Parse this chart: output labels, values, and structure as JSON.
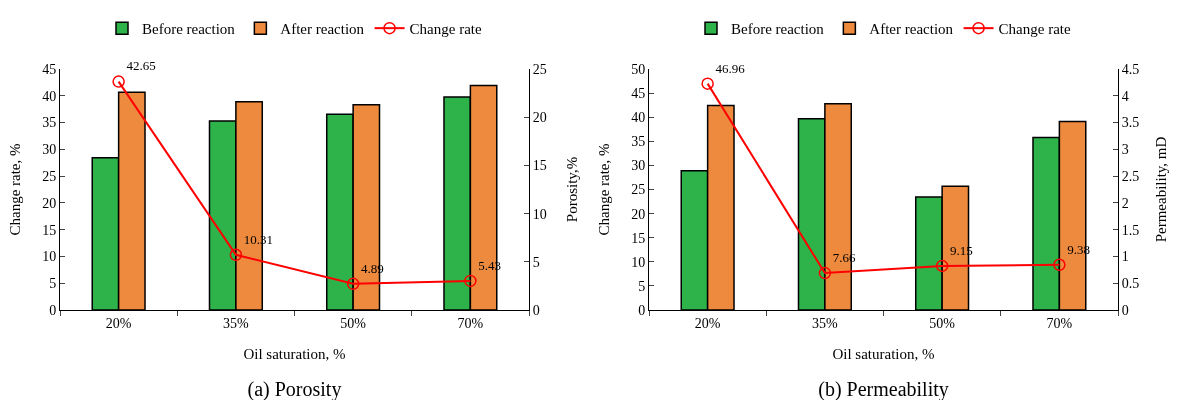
{
  "chart_data": [
    {
      "type": "bar",
      "title": "(a) Porosity",
      "xlabel": "Oil saturation, %",
      "ylabel": "Change rate, %",
      "y2label": "Porosity,%",
      "categories": [
        "20%",
        "35%",
        "50%",
        "70%"
      ],
      "series": [
        {
          "name": "Before reaction",
          "color": "#2db34a",
          "axis": "y2",
          "values": [
            15.8,
            19.6,
            20.3,
            22.1
          ]
        },
        {
          "name": "After reaction",
          "color": "#ed8a3e",
          "axis": "y2",
          "values": [
            22.6,
            21.6,
            21.3,
            23.3
          ]
        },
        {
          "name": "Change rate",
          "type": "line",
          "color": "#ff0000",
          "marker": "circle",
          "values": [
            42.65,
            10.31,
            4.89,
            5.43
          ],
          "value_labels": [
            "42.65",
            "10.31",
            "4.89",
            "5.43"
          ]
        }
      ],
      "ylim": [
        0,
        45
      ],
      "yticks": [
        0,
        5,
        10,
        15,
        20,
        25,
        30,
        35,
        40,
        45
      ],
      "y2lim": [
        0,
        25
      ],
      "y2ticks": [
        0,
        5,
        10,
        15,
        20,
        25
      ],
      "grid": false,
      "legend": "top"
    },
    {
      "type": "bar",
      "title": "(b) Permeability",
      "xlabel": "Oil saturation, %",
      "ylabel": "Change rate, %",
      "y2label": "Permeability, mD",
      "categories": [
        "20%",
        "35%",
        "50%",
        "70%"
      ],
      "series": [
        {
          "name": "Before reaction",
          "color": "#2db34a",
          "axis": "y2",
          "values": [
            2.6,
            3.57,
            2.11,
            3.22
          ]
        },
        {
          "name": "After reaction",
          "color": "#ed8a3e",
          "axis": "y2",
          "values": [
            3.82,
            3.85,
            2.31,
            3.52
          ]
        },
        {
          "name": "Change rate",
          "type": "line",
          "color": "#ff0000",
          "marker": "circle",
          "values": [
            46.96,
            7.66,
            9.15,
            9.38
          ],
          "value_labels": [
            "46.96",
            "7.66",
            "9.15",
            "9.38"
          ]
        }
      ],
      "ylim": [
        0,
        50
      ],
      "yticks": [
        0,
        5,
        10,
        15,
        20,
        25,
        30,
        35,
        40,
        45,
        50
      ],
      "y2lim": [
        0,
        4.5
      ],
      "y2ticks": [
        0,
        0.5,
        1,
        1.5,
        2,
        2.5,
        3,
        3.5,
        4,
        4.5
      ],
      "grid": false,
      "legend": "top"
    }
  ]
}
